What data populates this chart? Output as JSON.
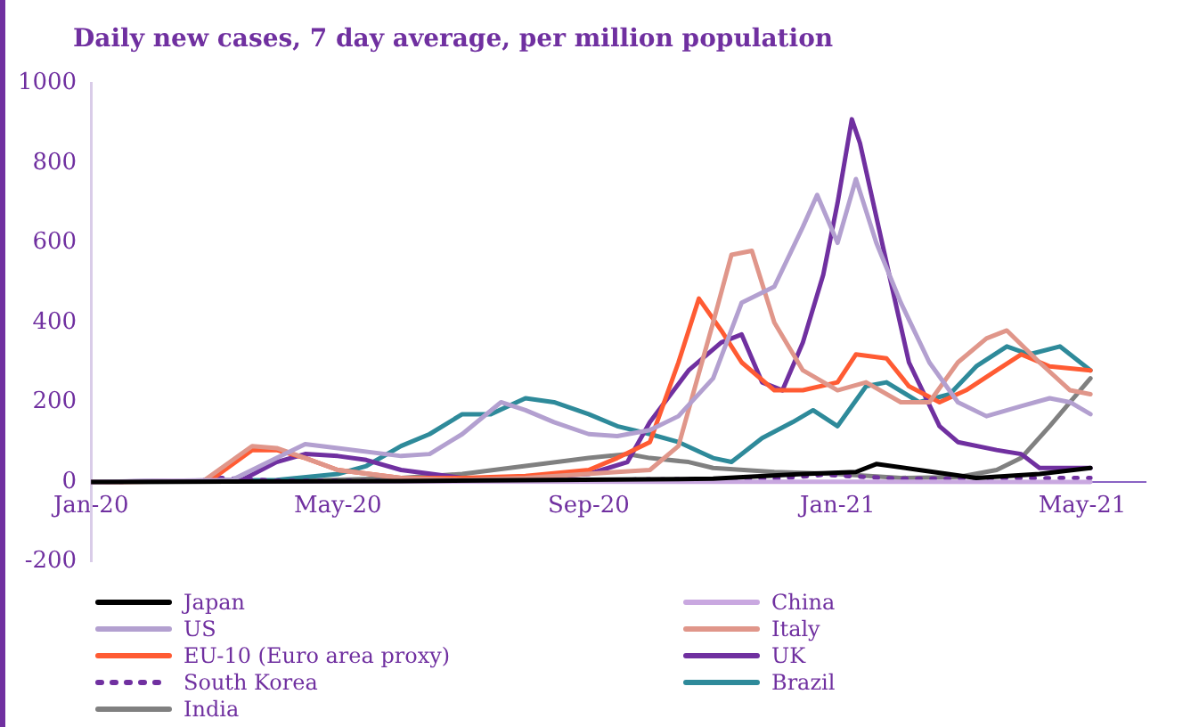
{
  "chart_data": {
    "type": "line",
    "title": "Daily new cases, 7 day average, per million population",
    "xlim": [
      "2020-01-01",
      "2021-06-01"
    ],
    "xticks": [
      {
        "value": "2020-01-01",
        "label": "Jan-20"
      },
      {
        "value": "2020-05-01",
        "label": "May-20"
      },
      {
        "value": "2020-09-01",
        "label": "Sep-20"
      },
      {
        "value": "2021-01-01",
        "label": "Jan-21"
      },
      {
        "value": "2021-05-01",
        "label": "May-21"
      }
    ],
    "ylim": [
      -200,
      1000
    ],
    "yticks": [
      -200,
      0,
      200,
      400,
      600,
      800,
      1000
    ],
    "grid": false,
    "legend": "bottom",
    "marker": "none",
    "series": [
      {
        "name": "Japan",
        "color": "#000000",
        "x": [
          "2020-01-01",
          "2020-06-01",
          "2020-11-01",
          "2020-12-15",
          "2021-01-10",
          "2021-01-20",
          "2021-02-10",
          "2021-03-10",
          "2021-04-10",
          "2021-05-05"
        ],
        "values": [
          0,
          2,
          8,
          20,
          25,
          45,
          30,
          10,
          20,
          35
        ]
      },
      {
        "name": "China",
        "color": "#c9a8e0",
        "x": [
          "2020-01-01",
          "2020-02-10",
          "2020-03-01",
          "2021-05-05"
        ],
        "values": [
          0,
          3,
          1,
          0
        ]
      },
      {
        "name": "US",
        "color": "#b3a0d0",
        "x": [
          "2020-01-01",
          "2020-03-10",
          "2020-04-01",
          "2020-04-15",
          "2020-05-01",
          "2020-06-01",
          "2020-06-15",
          "2020-07-01",
          "2020-07-20",
          "2020-08-01",
          "2020-08-15",
          "2020-09-01",
          "2020-09-15",
          "2020-10-01",
          "2020-10-15",
          "2020-11-01",
          "2020-11-15",
          "2020-12-01",
          "2020-12-15",
          "2020-12-22",
          "2021-01-01",
          "2021-01-10",
          "2021-01-20",
          "2021-02-01",
          "2021-02-15",
          "2021-03-01",
          "2021-03-15",
          "2021-04-01",
          "2021-04-15",
          "2021-04-25",
          "2021-05-05"
        ],
        "values": [
          0,
          5,
          60,
          95,
          85,
          65,
          70,
          120,
          200,
          180,
          150,
          120,
          115,
          130,
          165,
          260,
          450,
          490,
          640,
          720,
          600,
          760,
          600,
          450,
          300,
          200,
          165,
          190,
          210,
          200,
          170
        ]
      },
      {
        "name": "Italy",
        "color": "#e0968a",
        "x": [
          "2020-01-01",
          "2020-02-25",
          "2020-03-20",
          "2020-04-01",
          "2020-04-15",
          "2020-05-01",
          "2020-06-01",
          "2020-07-01",
          "2020-08-01",
          "2020-09-15",
          "2020-10-01",
          "2020-10-15",
          "2020-11-01",
          "2020-11-10",
          "2020-11-20",
          "2020-12-01",
          "2020-12-15",
          "2021-01-01",
          "2021-01-15",
          "2021-02-01",
          "2021-02-15",
          "2021-03-01",
          "2021-03-15",
          "2021-03-25",
          "2021-04-10",
          "2021-04-25",
          "2021-05-05"
        ],
        "values": [
          0,
          2,
          90,
          85,
          60,
          30,
          10,
          5,
          10,
          25,
          30,
          90,
          400,
          570,
          580,
          400,
          280,
          230,
          250,
          200,
          200,
          300,
          360,
          380,
          300,
          230,
          220
        ]
      },
      {
        "name": "EU-10 (Euro area proxy)",
        "color": "#ff5b33",
        "x": [
          "2020-01-01",
          "2020-02-28",
          "2020-03-20",
          "2020-04-01",
          "2020-04-15",
          "2020-05-01",
          "2020-06-01",
          "2020-07-01",
          "2020-08-01",
          "2020-09-01",
          "2020-09-15",
          "2020-10-01",
          "2020-10-15",
          "2020-10-25",
          "2020-11-05",
          "2020-11-15",
          "2020-12-01",
          "2020-12-15",
          "2021-01-01",
          "2021-01-10",
          "2021-01-25",
          "2021-02-05",
          "2021-02-20",
          "2021-03-05",
          "2021-03-20",
          "2021-04-01",
          "2021-04-15",
          "2021-05-05"
        ],
        "values": [
          0,
          2,
          80,
          80,
          60,
          30,
          10,
          10,
          15,
          30,
          60,
          100,
          300,
          460,
          380,
          300,
          230,
          230,
          250,
          320,
          310,
          240,
          200,
          230,
          280,
          320,
          290,
          280
        ]
      },
      {
        "name": "UK",
        "color": "#7030a0",
        "x": [
          "2020-01-01",
          "2020-03-15",
          "2020-04-01",
          "2020-04-15",
          "2020-05-01",
          "2020-05-15",
          "2020-06-01",
          "2020-07-01",
          "2020-08-01",
          "2020-09-01",
          "2020-09-20",
          "2020-10-01",
          "2020-10-20",
          "2020-11-05",
          "2020-11-15",
          "2020-11-25",
          "2020-12-05",
          "2020-12-15",
          "2020-12-25",
          "2021-01-01",
          "2021-01-08",
          "2021-01-12",
          "2021-01-25",
          "2021-02-05",
          "2021-02-20",
          "2021-03-01",
          "2021-03-20",
          "2021-04-01",
          "2021-04-10",
          "2021-04-25",
          "2021-05-05"
        ],
        "values": [
          0,
          5,
          50,
          70,
          65,
          55,
          30,
          10,
          10,
          20,
          50,
          150,
          280,
          350,
          370,
          250,
          230,
          350,
          520,
          700,
          910,
          850,
          550,
          300,
          140,
          100,
          80,
          70,
          35,
          35,
          35
        ]
      },
      {
        "name": "South Korea",
        "color": "#7030a0",
        "line_style": "dotted",
        "x": [
          "2020-01-01",
          "2020-02-20",
          "2020-03-05",
          "2020-04-01",
          "2020-08-01",
          "2020-09-01",
          "2020-12-01",
          "2020-12-25",
          "2021-02-01",
          "2021-05-05"
        ],
        "values": [
          0,
          2,
          10,
          3,
          1,
          5,
          8,
          18,
          8,
          10
        ]
      },
      {
        "name": "Brazil",
        "color": "#2e8a9a",
        "x": [
          "2020-01-01",
          "2020-04-01",
          "2020-05-01",
          "2020-05-15",
          "2020-06-01",
          "2020-06-15",
          "2020-07-01",
          "2020-07-15",
          "2020-08-01",
          "2020-08-15",
          "2020-09-01",
          "2020-09-15",
          "2020-10-01",
          "2020-10-15",
          "2020-11-01",
          "2020-11-10",
          "2020-11-25",
          "2020-12-10",
          "2020-12-20",
          "2021-01-01",
          "2021-01-15",
          "2021-01-25",
          "2021-02-10",
          "2021-02-25",
          "2021-03-10",
          "2021-03-25",
          "2021-04-05",
          "2021-04-20",
          "2021-05-05"
        ],
        "values": [
          0,
          5,
          20,
          40,
          90,
          120,
          170,
          170,
          210,
          200,
          170,
          140,
          120,
          100,
          60,
          50,
          110,
          150,
          180,
          140,
          240,
          250,
          200,
          220,
          290,
          340,
          320,
          340,
          280
        ]
      },
      {
        "name": "India",
        "color": "#808080",
        "x": [
          "2020-01-01",
          "2020-04-01",
          "2020-06-01",
          "2020-07-01",
          "2020-08-01",
          "2020-09-01",
          "2020-09-20",
          "2020-10-01",
          "2020-10-20",
          "2020-11-01",
          "2020-12-01",
          "2021-01-01",
          "2021-02-01",
          "2021-03-01",
          "2021-03-20",
          "2021-04-01",
          "2021-04-15",
          "2021-04-25",
          "2021-05-05"
        ],
        "values": [
          0,
          1,
          10,
          20,
          40,
          60,
          70,
          60,
          50,
          35,
          25,
          20,
          10,
          12,
          30,
          60,
          140,
          200,
          260
        ]
      }
    ]
  }
}
